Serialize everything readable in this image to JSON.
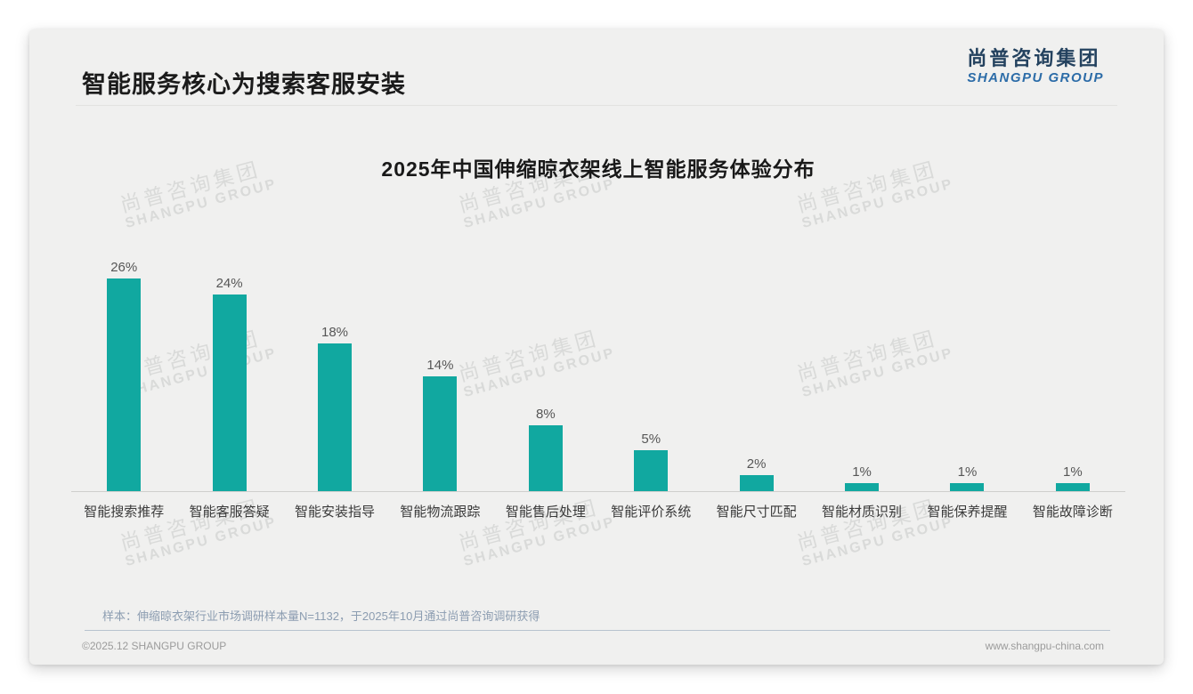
{
  "header": {
    "title": "智能服务核心为搜索客服安装",
    "logo_cn": "尚普咨询集团",
    "logo_en": "SHANGPU GROUP"
  },
  "chart_data": {
    "type": "bar",
    "title": "2025年中国伸缩晾衣架线上智能服务体验分布",
    "categories": [
      "智能搜索推荐",
      "智能客服答疑",
      "智能安装指导",
      "智能物流跟踪",
      "智能售后处理",
      "智能评价系统",
      "智能尺寸匹配",
      "智能材质识别",
      "智能保养提醒",
      "智能故障诊断"
    ],
    "values": [
      26,
      24,
      18,
      14,
      8,
      5,
      2,
      1,
      1,
      1
    ],
    "value_labels": [
      "26%",
      "24%",
      "18%",
      "14%",
      "8%",
      "5%",
      "2%",
      "1%",
      "1%",
      "1%"
    ],
    "unit": "%",
    "xlabel": "",
    "ylabel": "",
    "ylim": [
      0,
      30
    ],
    "grid": false,
    "legend": "none",
    "bar_color": "#11a8a0"
  },
  "watermark": {
    "line1": "尚普咨询集团",
    "line2": "SHANGPU GROUP"
  },
  "footnote": {
    "text": "样本：伸缩晾衣架行业市场调研样本量N=1132，于2025年10月通过尚普咨询调研获得"
  },
  "footer": {
    "copyright": "©2025.12 SHANGPU GROUP",
    "website": "www.shangpu-china.com"
  },
  "colors": {
    "accent_teal": "#11a8a0",
    "logo_navy": "#24425f",
    "logo_blue": "#2c6ca8",
    "note_blue_gray": "#8c9db1",
    "card_bg": "#f0f0ef"
  }
}
